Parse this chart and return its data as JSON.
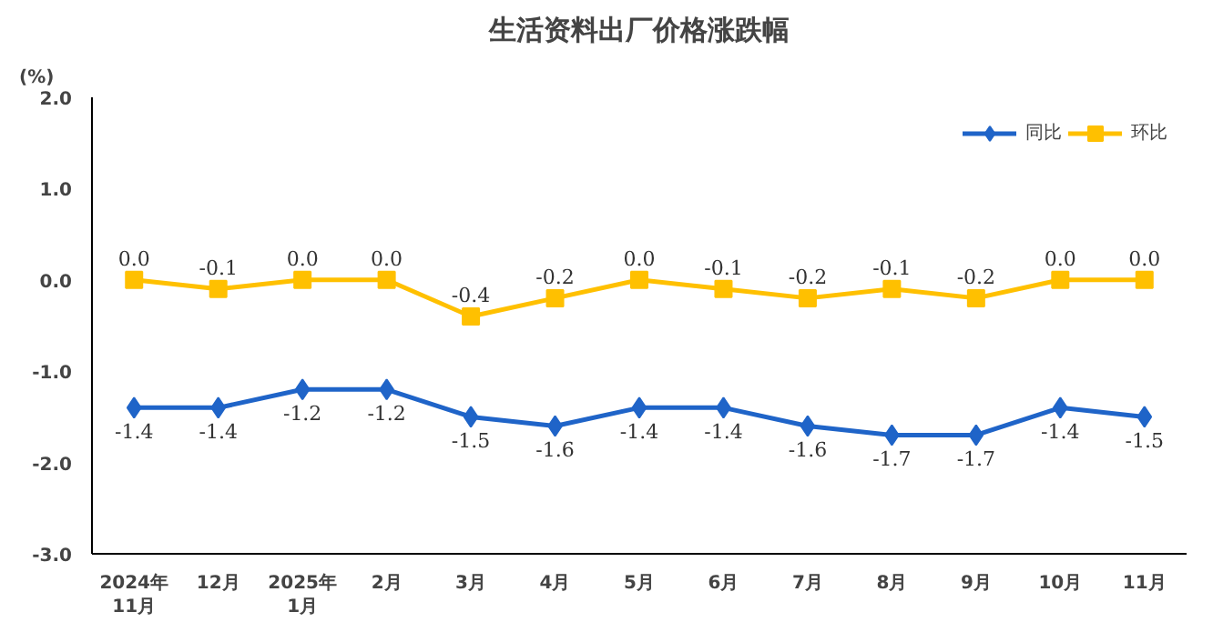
{
  "chart_data": {
    "type": "line",
    "title": "生活资料出厂价格涨跌幅",
    "ylabel": "(%)",
    "categories": [
      "2024年\n11月",
      "12月",
      "2025年\n1月",
      "2月",
      "3月",
      "4月",
      "5月",
      "6月",
      "7月",
      "8月",
      "9月",
      "10月",
      "11月"
    ],
    "series": [
      {
        "name": "同比",
        "color": "#1f64c8",
        "marker": "diamond",
        "values": [
          -1.4,
          -1.4,
          -1.2,
          -1.2,
          -1.5,
          -1.6,
          -1.4,
          -1.4,
          -1.6,
          -1.7,
          -1.7,
          -1.4,
          -1.5
        ],
        "value_labels": [
          "-1.4",
          "-1.4",
          "-1.2",
          "-1.2",
          "-1.5",
          "-1.6",
          "-1.4",
          "-1.4",
          "-1.6",
          "-1.7",
          "-1.7",
          "-1.4",
          "-1.5"
        ]
      },
      {
        "name": "环比",
        "color": "#ffc000",
        "marker": "square",
        "values": [
          0.0,
          -0.1,
          0.0,
          0.0,
          -0.4,
          -0.2,
          0.0,
          -0.1,
          -0.2,
          -0.1,
          -0.2,
          0.0,
          0.0
        ],
        "value_labels": [
          "0.0",
          "-0.1",
          "0.0",
          "0.0",
          "-0.4",
          "-0.2",
          "0.0",
          "-0.1",
          "-0.2",
          "-0.1",
          "-0.2",
          "0.0",
          "0.0"
        ]
      }
    ],
    "ylim": [
      -3,
      2
    ],
    "yticks": [
      {
        "value": 2,
        "label": "2.0"
      },
      {
        "value": 1,
        "label": "1.0"
      },
      {
        "value": 0,
        "label": "0.0"
      },
      {
        "value": -1,
        "label": "-1.0"
      },
      {
        "value": -2,
        "label": "-2.0"
      },
      {
        "value": -3,
        "label": "-3.0"
      }
    ],
    "grid": false,
    "legend": "top right",
    "line_style": "solid"
  }
}
